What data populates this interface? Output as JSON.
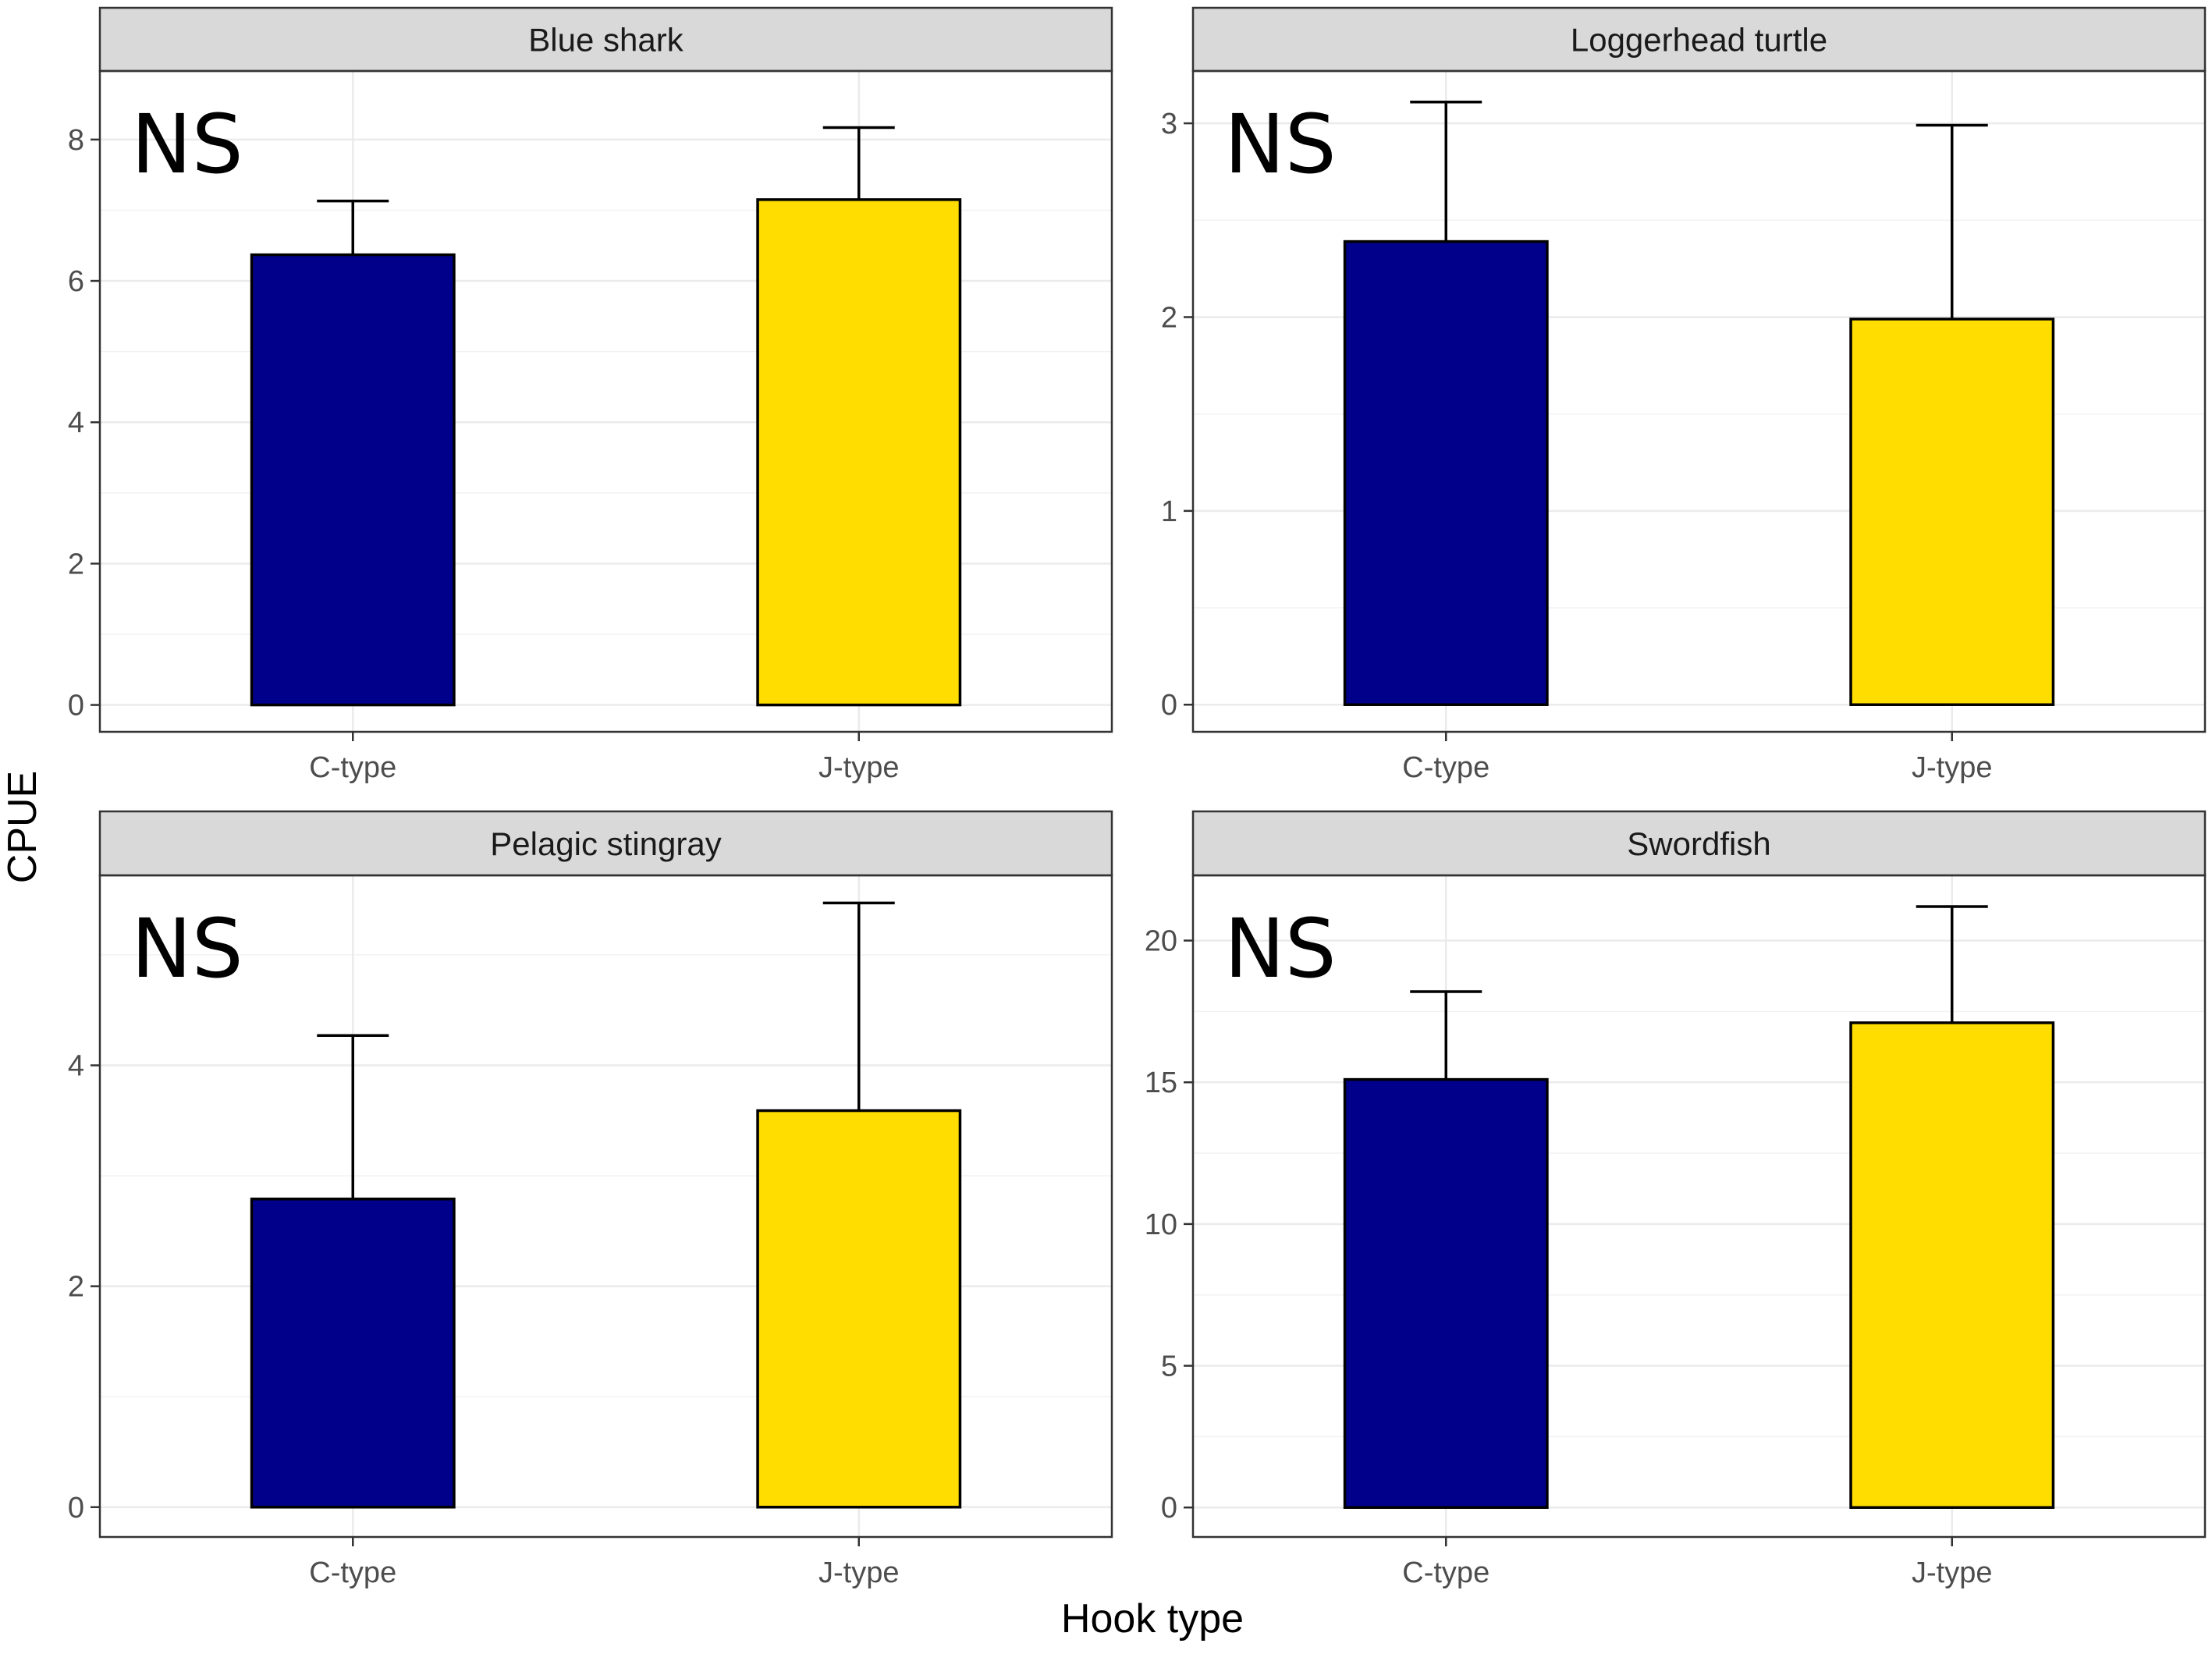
{
  "chart_data": {
    "type": "bar",
    "xlabel": "Hook type",
    "ylabel": "CPUE",
    "categories": [
      "C-type",
      "J-type"
    ],
    "colors": {
      "C-type": "#00008B",
      "J-type": "#FFDD00"
    },
    "panels": [
      {
        "title": "Blue shark",
        "annotation": "NS",
        "values": [
          6.37,
          7.15
        ],
        "error_upper": [
          7.13,
          8.17
        ],
        "ylim": [
          -0.38,
          8.97
        ],
        "yticks": [
          0,
          2,
          4,
          6,
          8
        ]
      },
      {
        "title": "Loggerhead turtle",
        "annotation": "NS",
        "values": [
          2.39,
          1.99
        ],
        "error_upper": [
          3.11,
          2.99
        ],
        "ylim": [
          -0.14,
          3.27
        ],
        "yticks": [
          0,
          1,
          2,
          3
        ]
      },
      {
        "title": "Pelagic stingray",
        "annotation": "NS",
        "values": [
          2.79,
          3.59
        ],
        "error_upper": [
          4.27,
          5.47
        ],
        "ylim": [
          -0.27,
          5.72
        ],
        "yticks": [
          0,
          2,
          4
        ]
      },
      {
        "title": "Swordfish",
        "annotation": "NS",
        "values": [
          15.1,
          17.1
        ],
        "error_upper": [
          18.2,
          21.2
        ],
        "ylim": [
          -1.04,
          22.3
        ],
        "yticks": [
          0,
          5,
          10,
          15,
          20
        ]
      }
    ]
  }
}
